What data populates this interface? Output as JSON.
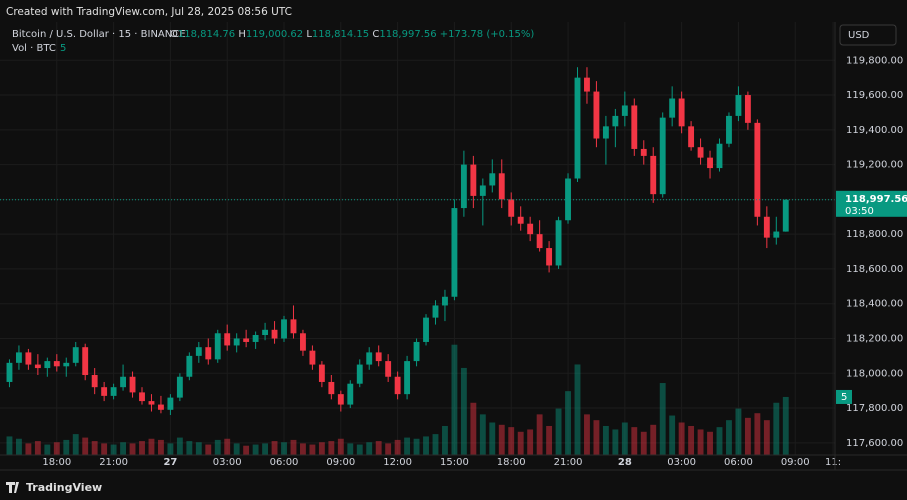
{
  "header": {
    "created": "Created with TradingView.com, Jul 28, 2025 08:56 UTC",
    "currency": "USD",
    "footer": "TradingView"
  },
  "chart_data": {
    "type": "candlestick",
    "legend": {
      "symbol": "Bitcoin / U.S. Dollar · 15 · BINANCE",
      "o_label": "O",
      "o": "118,814.76",
      "h_label": "H",
      "h": "119,000.62",
      "l_label": "L",
      "l": "118,814.15",
      "c_label": "C",
      "c": "118,997.56",
      "change": "+173.78 (+0.15%)"
    },
    "up_color": "#089981",
    "down_color": "#f23645",
    "open": [
      117950,
      118060,
      118120,
      118050,
      118030,
      118070,
      118040,
      118060,
      118150,
      117990,
      117920,
      117870,
      117920,
      117980,
      117890,
      117840,
      117820,
      117790,
      117860,
      117980,
      118100,
      118150,
      118080,
      118230,
      118160,
      118200,
      118180,
      118220,
      118250,
      118200,
      118310,
      118230,
      118130,
      118050,
      117950,
      117880,
      117820,
      117940,
      118050,
      118120,
      118070,
      117980,
      117880,
      118070,
      118180,
      118320,
      118390,
      118440,
      118950,
      119200,
      119020,
      119080,
      119150,
      119000,
      118900,
      118860,
      118800,
      118720,
      118620,
      118880,
      119120,
      119700,
      119620,
      119350,
      119420,
      119480,
      119540,
      119290,
      119250,
      119030,
      119470,
      119580,
      119420,
      119300,
      119240,
      119180,
      119320,
      119480,
      119600,
      119440,
      118900,
      118780,
      118814.76
    ],
    "high": [
      118080,
      118160,
      118140,
      118110,
      118090,
      118110,
      118090,
      118180,
      118170,
      118030,
      117950,
      117940,
      118050,
      118010,
      117920,
      117880,
      117870,
      117880,
      118000,
      118120,
      118180,
      118200,
      118250,
      118280,
      118230,
      118250,
      118240,
      118290,
      118300,
      118330,
      118390,
      118250,
      118160,
      118070,
      117990,
      117900,
      117960,
      118080,
      118150,
      118160,
      118110,
      118010,
      118100,
      118200,
      118340,
      118420,
      118480,
      119000,
      119280,
      119250,
      119120,
      119230,
      119230,
      119040,
      118960,
      118900,
      118880,
      118760,
      118900,
      119150,
      119760,
      119760,
      119680,
      119480,
      119520,
      119620,
      119580,
      119340,
      119300,
      119500,
      119650,
      119620,
      119450,
      119350,
      119280,
      119350,
      119500,
      119650,
      119620,
      119460,
      118960,
      118900,
      119000.62
    ],
    "low": [
      117920,
      118020,
      118020,
      117990,
      117980,
      118010,
      117980,
      118040,
      117960,
      117880,
      117840,
      117850,
      117900,
      117860,
      117820,
      117780,
      117770,
      117760,
      117840,
      117960,
      118060,
      118050,
      118060,
      118130,
      118120,
      118150,
      118140,
      118190,
      118170,
      118180,
      118200,
      118100,
      118020,
      117920,
      117850,
      117780,
      117800,
      117920,
      118020,
      118040,
      117950,
      117850,
      117850,
      118040,
      118160,
      118280,
      118300,
      118420,
      118900,
      118950,
      118850,
      119040,
      118950,
      118850,
      118820,
      118760,
      118700,
      118580,
      118600,
      118860,
      119100,
      119550,
      119300,
      119200,
      119300,
      119420,
      119250,
      119200,
      118980,
      119010,
      119420,
      119380,
      119280,
      119200,
      119120,
      119160,
      119300,
      119450,
      119400,
      118850,
      118720,
      118740,
      118814.15
    ],
    "close": [
      118060,
      118120,
      118050,
      118030,
      118070,
      118040,
      118060,
      118150,
      117990,
      117920,
      117870,
      117920,
      117980,
      117890,
      117840,
      117820,
      117790,
      117860,
      117980,
      118100,
      118150,
      118080,
      118230,
      118160,
      118200,
      118180,
      118220,
      118250,
      118200,
      118310,
      118230,
      118130,
      118050,
      117950,
      117880,
      117820,
      117940,
      118050,
      118120,
      118070,
      117980,
      117880,
      118070,
      118180,
      118320,
      118390,
      118440,
      118950,
      119200,
      119020,
      119080,
      119150,
      119000,
      118900,
      118860,
      118800,
      118720,
      118620,
      118880,
      119120,
      119700,
      119620,
      119350,
      119420,
      119480,
      119540,
      119290,
      119250,
      119030,
      119470,
      119580,
      119420,
      119300,
      119240,
      119180,
      119320,
      119480,
      119600,
      119440,
      118900,
      118780,
      118815,
      118997.56
    ],
    "volume": {
      "name": "Vol · BTC",
      "values": [
        1.6,
        1.4,
        1.0,
        1.2,
        0.9,
        1.1,
        1.3,
        1.8,
        1.5,
        1.2,
        1.0,
        0.9,
        1.1,
        1.0,
        1.2,
        1.4,
        1.3,
        1.0,
        1.5,
        1.2,
        1.1,
        0.9,
        1.3,
        1.4,
        1.0,
        0.8,
        0.9,
        1.0,
        1.2,
        1.1,
        1.3,
        1.0,
        0.9,
        1.1,
        1.2,
        1.4,
        1.0,
        0.9,
        1.1,
        1.2,
        1.0,
        1.3,
        1.5,
        1.4,
        1.6,
        1.8,
        2.5,
        9.5,
        7.5,
        4.5,
        3.5,
        2.8,
        2.6,
        2.4,
        2.0,
        2.2,
        3.5,
        2.5,
        4.0,
        5.5,
        7.8,
        3.5,
        3.0,
        2.5,
        2.2,
        2.8,
        2.4,
        2.0,
        2.6,
        6.2,
        3.4,
        2.8,
        2.5,
        2.2,
        2.0,
        2.4,
        3.0,
        4.0,
        3.2,
        3.6,
        3.0,
        4.5,
        5
      ]
    },
    "last_price_label": "118,997.56",
    "countdown": "03:50",
    "xlim": [
      -1,
      87.2
    ],
    "xticks": [
      {
        "value": 5,
        "label": "18:00"
      },
      {
        "value": 11,
        "label": "21:00"
      },
      {
        "value": 17,
        "label": "27"
      },
      {
        "value": 23,
        "label": "03:00"
      },
      {
        "value": 29,
        "label": "06:00"
      },
      {
        "value": 35,
        "label": "09:00"
      },
      {
        "value": 41,
        "label": "12:00"
      },
      {
        "value": 47,
        "label": "15:00"
      },
      {
        "value": 53,
        "label": "18:00"
      },
      {
        "value": 59,
        "label": "21:00"
      },
      {
        "value": 65,
        "label": "28"
      },
      {
        "value": 71,
        "label": "03:00"
      },
      {
        "value": 77,
        "label": "06:00"
      },
      {
        "value": 83,
        "label": "09:00"
      },
      {
        "value": 87,
        "label": "11:"
      }
    ],
    "ylim": [
      117530,
      120020
    ],
    "yticks": [
      {
        "value": 117600,
        "label": "117,600.00"
      },
      {
        "value": 117800,
        "label": "117,800.00"
      },
      {
        "value": 118000,
        "label": "118,000.00"
      },
      {
        "value": 118200,
        "label": "118,200.00"
      },
      {
        "value": 118400,
        "label": "118,400.00"
      },
      {
        "value": 118600,
        "label": "118,600.00"
      },
      {
        "value": 118800,
        "label": "118,800.00"
      },
      {
        "value": 119000,
        "label": "119,000.00"
      },
      {
        "value": 119200,
        "label": "119,200.00"
      },
      {
        "value": 119400,
        "label": "119,400.00"
      },
      {
        "value": 119600,
        "label": "119,600.00"
      },
      {
        "value": 119800,
        "label": "119,800.00"
      }
    ],
    "y2lim": [
      0,
      37.3
    ],
    "grid": true
  }
}
